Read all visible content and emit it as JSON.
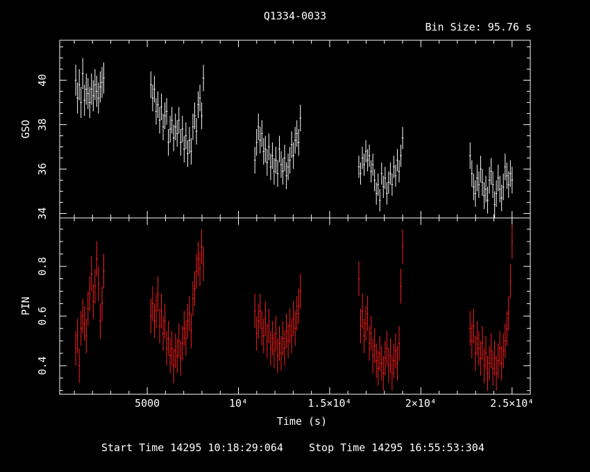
{
  "title": "Q1334-0033",
  "bin_size_label": "Bin Size: 95.76 s",
  "start_time_label": "Start Time 14295 10:18:29:064",
  "stop_time_label": "Stop Time 14295 16:55:53:304",
  "xlabel": "Time (s)",
  "colors": {
    "background": "#000000",
    "axes": "#ffffff",
    "gso": "#ffffff",
    "pin": "#ff2020"
  },
  "chart_data": [
    {
      "type": "scatter",
      "name": "GSO",
      "ylabel": "GSO",
      "xlim": [
        200,
        26000
      ],
      "ylim": [
        33.8,
        41.8
      ],
      "yticks": [
        34,
        36,
        38,
        40
      ],
      "ytick_labels": [
        "34",
        "36",
        "38",
        "40"
      ],
      "xticks": [
        5000,
        10000,
        15000,
        20000,
        25000
      ],
      "grid": false,
      "error_bars": true,
      "points": [
        [
          1080,
          40.0,
          0.7
        ],
        [
          1176,
          39.2,
          0.7
        ],
        [
          1272,
          39.8,
          0.7
        ],
        [
          1368,
          39.0,
          0.7
        ],
        [
          1464,
          40.3,
          0.7
        ],
        [
          1560,
          39.1,
          0.7
        ],
        [
          1656,
          39.6,
          0.7
        ],
        [
          1752,
          39.4,
          0.7
        ],
        [
          1848,
          39.0,
          0.7
        ],
        [
          1944,
          39.6,
          0.7
        ],
        [
          2040,
          39.3,
          0.7
        ],
        [
          2136,
          39.8,
          0.7
        ],
        [
          2232,
          39.5,
          0.7
        ],
        [
          2328,
          39.2,
          0.7
        ],
        [
          2424,
          39.7,
          0.7
        ],
        [
          2520,
          39.9,
          0.7
        ],
        [
          2616,
          40.1,
          0.7
        ],
        [
          5200,
          39.8,
          0.6
        ],
        [
          5296,
          39.2,
          0.6
        ],
        [
          5392,
          39.6,
          0.6
        ],
        [
          5488,
          38.6,
          0.6
        ],
        [
          5584,
          38.9,
          0.6
        ],
        [
          5680,
          38.2,
          0.6
        ],
        [
          5776,
          38.8,
          0.6
        ],
        [
          5872,
          37.9,
          0.6
        ],
        [
          5968,
          38.4,
          0.6
        ],
        [
          6064,
          38.6,
          0.6
        ],
        [
          6160,
          37.2,
          0.6
        ],
        [
          6256,
          37.8,
          0.6
        ],
        [
          6352,
          38.2,
          0.6
        ],
        [
          6448,
          37.4,
          0.6
        ],
        [
          6544,
          37.9,
          0.6
        ],
        [
          6640,
          37.6,
          0.6
        ],
        [
          6736,
          38.2,
          0.6
        ],
        [
          6832,
          37.2,
          0.6
        ],
        [
          6928,
          37.8,
          0.6
        ],
        [
          7024,
          36.9,
          0.6
        ],
        [
          7120,
          37.5,
          0.6
        ],
        [
          7216,
          36.7,
          0.6
        ],
        [
          7312,
          37.3,
          0.6
        ],
        [
          7408,
          36.8,
          0.6
        ],
        [
          7504,
          37.9,
          0.6
        ],
        [
          7600,
          38.4,
          0.6
        ],
        [
          7696,
          37.7,
          0.6
        ],
        [
          7792,
          38.9,
          0.6
        ],
        [
          7888,
          39.2,
          0.6
        ],
        [
          7984,
          38.4,
          0.6
        ],
        [
          8080,
          40.1,
          0.6
        ],
        [
          10900,
          36.4,
          0.6
        ],
        [
          10996,
          37.2,
          0.6
        ],
        [
          11092,
          37.9,
          0.6
        ],
        [
          11188,
          37.3,
          0.6
        ],
        [
          11284,
          37.6,
          0.6
        ],
        [
          11380,
          36.8,
          0.6
        ],
        [
          11476,
          36.9,
          0.6
        ],
        [
          11572,
          36.3,
          0.6
        ],
        [
          11668,
          37.0,
          0.6
        ],
        [
          11764,
          36.1,
          0.6
        ],
        [
          11860,
          36.6,
          0.6
        ],
        [
          11956,
          35.9,
          0.6
        ],
        [
          12052,
          36.4,
          0.6
        ],
        [
          12148,
          35.8,
          0.6
        ],
        [
          12244,
          36.9,
          0.6
        ],
        [
          12340,
          36.2,
          0.6
        ],
        [
          12436,
          35.9,
          0.6
        ],
        [
          12532,
          36.5,
          0.6
        ],
        [
          12628,
          35.7,
          0.6
        ],
        [
          12724,
          36.1,
          0.6
        ],
        [
          12820,
          36.4,
          0.6
        ],
        [
          12916,
          37.1,
          0.6
        ],
        [
          13012,
          36.6,
          0.6
        ],
        [
          13108,
          37.3,
          0.6
        ],
        [
          13204,
          37.6,
          0.6
        ],
        [
          13300,
          37.2,
          0.6
        ],
        [
          13396,
          38.3,
          0.6
        ],
        [
          16600,
          36.1,
          0.5
        ],
        [
          16696,
          35.8,
          0.5
        ],
        [
          16792,
          36.5,
          0.5
        ],
        [
          16888,
          36.2,
          0.5
        ],
        [
          16984,
          36.8,
          0.5
        ],
        [
          17080,
          36.4,
          0.5
        ],
        [
          17176,
          36.6,
          0.5
        ],
        [
          17272,
          35.9,
          0.5
        ],
        [
          17368,
          36.2,
          0.5
        ],
        [
          17464,
          35.5,
          0.5
        ],
        [
          17560,
          34.9,
          0.5
        ],
        [
          17656,
          35.3,
          0.5
        ],
        [
          17752,
          34.6,
          0.5
        ],
        [
          17848,
          35.8,
          0.5
        ],
        [
          17944,
          35.2,
          0.5
        ],
        [
          18040,
          35.6,
          0.5
        ],
        [
          18136,
          34.9,
          0.5
        ],
        [
          18232,
          35.4,
          0.5
        ],
        [
          18328,
          35.8,
          0.5
        ],
        [
          18424,
          35.3,
          0.5
        ],
        [
          18520,
          36.1,
          0.5
        ],
        [
          18616,
          35.7,
          0.5
        ],
        [
          18712,
          36.4,
          0.5
        ],
        [
          18808,
          35.9,
          0.5
        ],
        [
          18904,
          36.6,
          0.5
        ],
        [
          19000,
          37.4,
          0.5
        ],
        [
          22700,
          36.6,
          0.6
        ],
        [
          22796,
          35.8,
          0.6
        ],
        [
          22892,
          35.2,
          0.6
        ],
        [
          22988,
          34.9,
          0.6
        ],
        [
          23084,
          35.6,
          0.6
        ],
        [
          23180,
          35.3,
          0.6
        ],
        [
          23276,
          36.0,
          0.6
        ],
        [
          23372,
          35.4,
          0.6
        ],
        [
          23468,
          34.8,
          0.6
        ],
        [
          23564,
          35.1,
          0.6
        ],
        [
          23660,
          34.6,
          0.6
        ],
        [
          23756,
          35.5,
          0.6
        ],
        [
          23852,
          35.9,
          0.6
        ],
        [
          23948,
          35.3,
          0.6
        ],
        [
          24044,
          34.4,
          0.6
        ],
        [
          24140,
          34.9,
          0.6
        ],
        [
          24236,
          35.6,
          0.6
        ],
        [
          24332,
          35.1,
          0.6
        ],
        [
          24428,
          34.7,
          0.6
        ],
        [
          24524,
          35.2,
          0.6
        ],
        [
          24620,
          36.1,
          0.6
        ],
        [
          24716,
          35.7,
          0.6
        ],
        [
          24812,
          35.3,
          0.6
        ],
        [
          24908,
          35.8,
          0.6
        ],
        [
          25004,
          35.5,
          0.6
        ]
      ]
    },
    {
      "type": "scatter",
      "name": "PIN",
      "ylabel": "PIN",
      "xlim": [
        200,
        26000
      ],
      "ylim": [
        0.285,
        0.995
      ],
      "yticks": [
        0.4,
        0.6,
        0.8
      ],
      "ytick_labels": [
        "0.4",
        "0.6",
        "0.8"
      ],
      "xticks": [
        5000,
        10000,
        15000,
        20000,
        25000
      ],
      "xtick_labels": [
        "5000",
        "10⁴",
        "1.5×10⁴",
        "2×10⁴",
        "2.5×10⁴"
      ],
      "grid": false,
      "error_bars": true,
      "points": [
        [
          1080,
          0.47,
          0.07
        ],
        [
          1176,
          0.52,
          0.07
        ],
        [
          1272,
          0.4,
          0.07
        ],
        [
          1368,
          0.55,
          0.07
        ],
        [
          1464,
          0.6,
          0.07
        ],
        [
          1560,
          0.57,
          0.07
        ],
        [
          1656,
          0.52,
          0.07
        ],
        [
          1752,
          0.63,
          0.07
        ],
        [
          1848,
          0.69,
          0.07
        ],
        [
          1944,
          0.77,
          0.07
        ],
        [
          2040,
          0.66,
          0.07
        ],
        [
          2136,
          0.72,
          0.07
        ],
        [
          2232,
          0.83,
          0.07
        ],
        [
          2328,
          0.73,
          0.07
        ],
        [
          2424,
          0.58,
          0.07
        ],
        [
          2520,
          0.65,
          0.07
        ],
        [
          2616,
          0.78,
          0.07
        ],
        [
          5200,
          0.6,
          0.07
        ],
        [
          5296,
          0.65,
          0.07
        ],
        [
          5392,
          0.58,
          0.07
        ],
        [
          5488,
          0.62,
          0.07
        ],
        [
          5584,
          0.69,
          0.07
        ],
        [
          5680,
          0.56,
          0.07
        ],
        [
          5776,
          0.62,
          0.07
        ],
        [
          5872,
          0.53,
          0.07
        ],
        [
          5968,
          0.58,
          0.07
        ],
        [
          6064,
          0.47,
          0.07
        ],
        [
          6160,
          0.51,
          0.07
        ],
        [
          6256,
          0.44,
          0.07
        ],
        [
          6352,
          0.47,
          0.07
        ],
        [
          6448,
          0.4,
          0.07
        ],
        [
          6544,
          0.46,
          0.07
        ],
        [
          6640,
          0.44,
          0.07
        ],
        [
          6736,
          0.5,
          0.07
        ],
        [
          6832,
          0.43,
          0.07
        ],
        [
          6928,
          0.49,
          0.07
        ],
        [
          7024,
          0.55,
          0.07
        ],
        [
          7120,
          0.51,
          0.07
        ],
        [
          7216,
          0.58,
          0.07
        ],
        [
          7312,
          0.61,
          0.07
        ],
        [
          7408,
          0.54,
          0.07
        ],
        [
          7504,
          0.67,
          0.07
        ],
        [
          7600,
          0.71,
          0.07
        ],
        [
          7696,
          0.78,
          0.07
        ],
        [
          7792,
          0.83,
          0.07
        ],
        [
          7888,
          0.79,
          0.07
        ],
        [
          7984,
          0.88,
          0.07
        ],
        [
          8080,
          0.81,
          0.07
        ],
        [
          10900,
          0.62,
          0.07
        ],
        [
          10996,
          0.53,
          0.07
        ],
        [
          11092,
          0.58,
          0.07
        ],
        [
          11188,
          0.62,
          0.07
        ],
        [
          11284,
          0.55,
          0.07
        ],
        [
          11380,
          0.52,
          0.07
        ],
        [
          11476,
          0.59,
          0.07
        ],
        [
          11572,
          0.5,
          0.07
        ],
        [
          11668,
          0.56,
          0.07
        ],
        [
          11764,
          0.47,
          0.07
        ],
        [
          11860,
          0.51,
          0.07
        ],
        [
          11956,
          0.46,
          0.07
        ],
        [
          12052,
          0.53,
          0.07
        ],
        [
          12148,
          0.44,
          0.07
        ],
        [
          12244,
          0.49,
          0.07
        ],
        [
          12340,
          0.45,
          0.07
        ],
        [
          12436,
          0.51,
          0.07
        ],
        [
          12532,
          0.47,
          0.07
        ],
        [
          12628,
          0.54,
          0.07
        ],
        [
          12724,
          0.5,
          0.07
        ],
        [
          12820,
          0.56,
          0.07
        ],
        [
          12916,
          0.52,
          0.07
        ],
        [
          13012,
          0.59,
          0.07
        ],
        [
          13108,
          0.55,
          0.07
        ],
        [
          13204,
          0.61,
          0.07
        ],
        [
          13300,
          0.64,
          0.07
        ],
        [
          13396,
          0.7,
          0.07
        ],
        [
          16600,
          0.75,
          0.07
        ],
        [
          16696,
          0.56,
          0.07
        ],
        [
          16792,
          0.62,
          0.07
        ],
        [
          16888,
          0.52,
          0.07
        ],
        [
          16984,
          0.57,
          0.07
        ],
        [
          17080,
          0.61,
          0.07
        ],
        [
          17176,
          0.49,
          0.07
        ],
        [
          17272,
          0.53,
          0.07
        ],
        [
          17368,
          0.44,
          0.07
        ],
        [
          17464,
          0.48,
          0.07
        ],
        [
          17560,
          0.42,
          0.07
        ],
        [
          17656,
          0.39,
          0.07
        ],
        [
          17752,
          0.45,
          0.07
        ],
        [
          17848,
          0.41,
          0.07
        ],
        [
          17944,
          0.37,
          0.07
        ],
        [
          18040,
          0.43,
          0.07
        ],
        [
          18136,
          0.47,
          0.07
        ],
        [
          18232,
          0.4,
          0.07
        ],
        [
          18328,
          0.44,
          0.07
        ],
        [
          18424,
          0.37,
          0.07
        ],
        [
          18520,
          0.42,
          0.07
        ],
        [
          18616,
          0.46,
          0.07
        ],
        [
          18712,
          0.41,
          0.07
        ],
        [
          18808,
          0.49,
          0.07
        ],
        [
          18904,
          0.72,
          0.07
        ],
        [
          19000,
          0.88,
          0.07
        ],
        [
          22700,
          0.55,
          0.07
        ],
        [
          22796,
          0.5,
          0.07
        ],
        [
          22892,
          0.56,
          0.07
        ],
        [
          22988,
          0.45,
          0.07
        ],
        [
          23084,
          0.51,
          0.07
        ],
        [
          23180,
          0.47,
          0.07
        ],
        [
          23276,
          0.43,
          0.07
        ],
        [
          23372,
          0.49,
          0.07
        ],
        [
          23468,
          0.4,
          0.07
        ],
        [
          23564,
          0.45,
          0.07
        ],
        [
          23660,
          0.37,
          0.07
        ],
        [
          23756,
          0.41,
          0.07
        ],
        [
          23852,
          0.46,
          0.07
        ],
        [
          23948,
          0.39,
          0.07
        ],
        [
          24044,
          0.43,
          0.07
        ],
        [
          24140,
          0.37,
          0.07
        ],
        [
          24236,
          0.42,
          0.07
        ],
        [
          24332,
          0.47,
          0.07
        ],
        [
          24428,
          0.41,
          0.07
        ],
        [
          24524,
          0.46,
          0.07
        ],
        [
          24620,
          0.5,
          0.07
        ],
        [
          24716,
          0.55,
          0.07
        ],
        [
          24812,
          0.61,
          0.07
        ],
        [
          24908,
          0.74,
          0.07
        ],
        [
          25004,
          0.9,
          0.07
        ]
      ]
    }
  ]
}
